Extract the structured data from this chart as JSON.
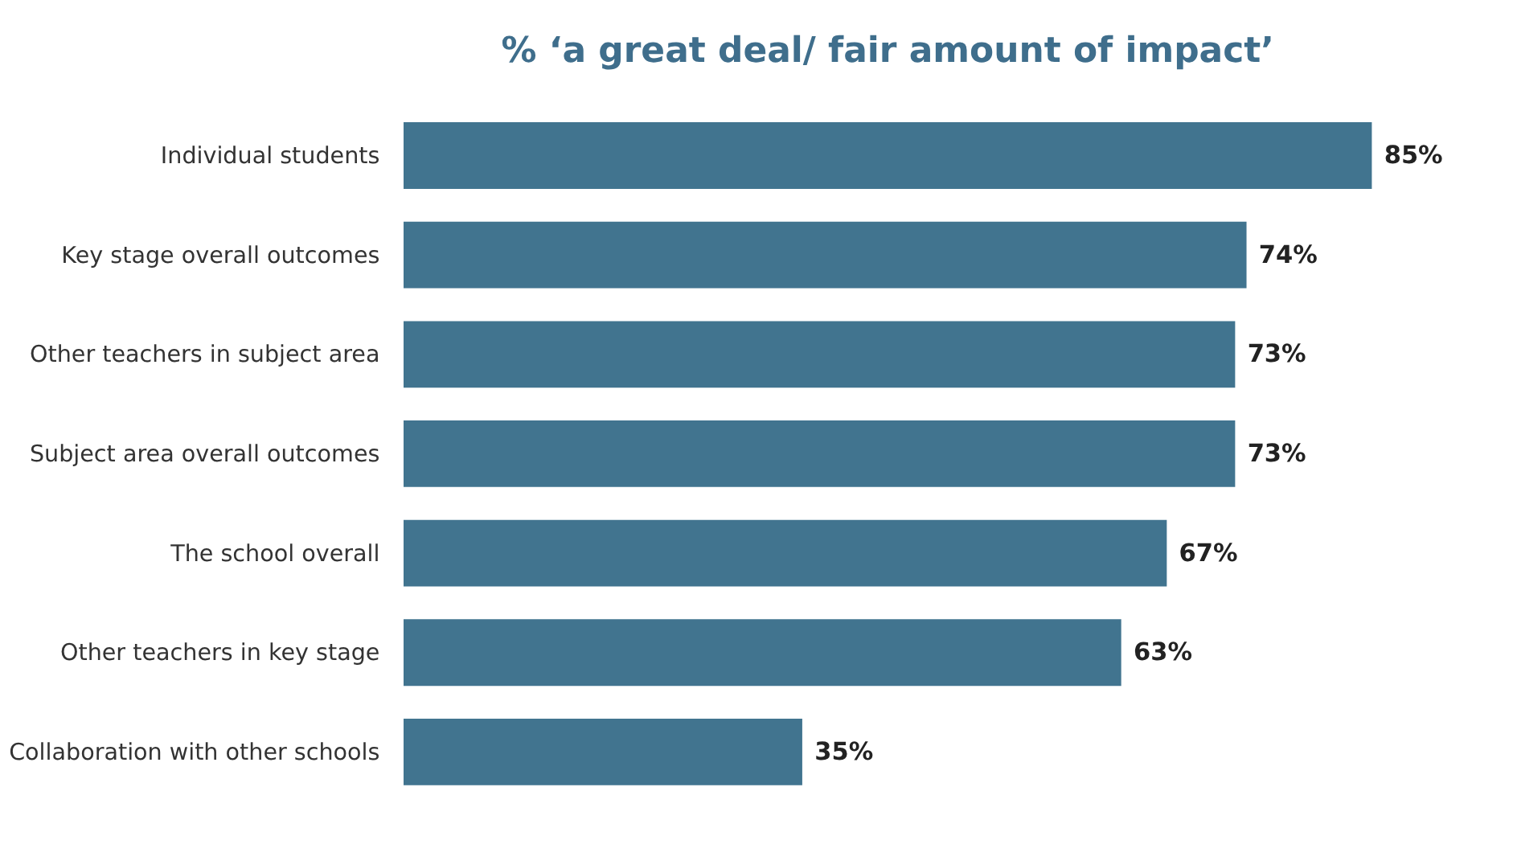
{
  "chart_data": {
    "type": "bar",
    "orientation": "horizontal",
    "title": "% ‘a great deal/ fair amount of impact’",
    "categories": [
      "Individual students",
      "Key stage overall outcomes",
      "Other teachers in subject area",
      "Subject area overall outcomes",
      "The school overall",
      "Other teachers in key stage",
      "Collaboration with other schools"
    ],
    "values": [
      85,
      74,
      73,
      73,
      67,
      63,
      35
    ],
    "value_labels": [
      "85%",
      "74%",
      "73%",
      "73%",
      "67%",
      "63%",
      "35%"
    ],
    "color": "#41748f"
  }
}
